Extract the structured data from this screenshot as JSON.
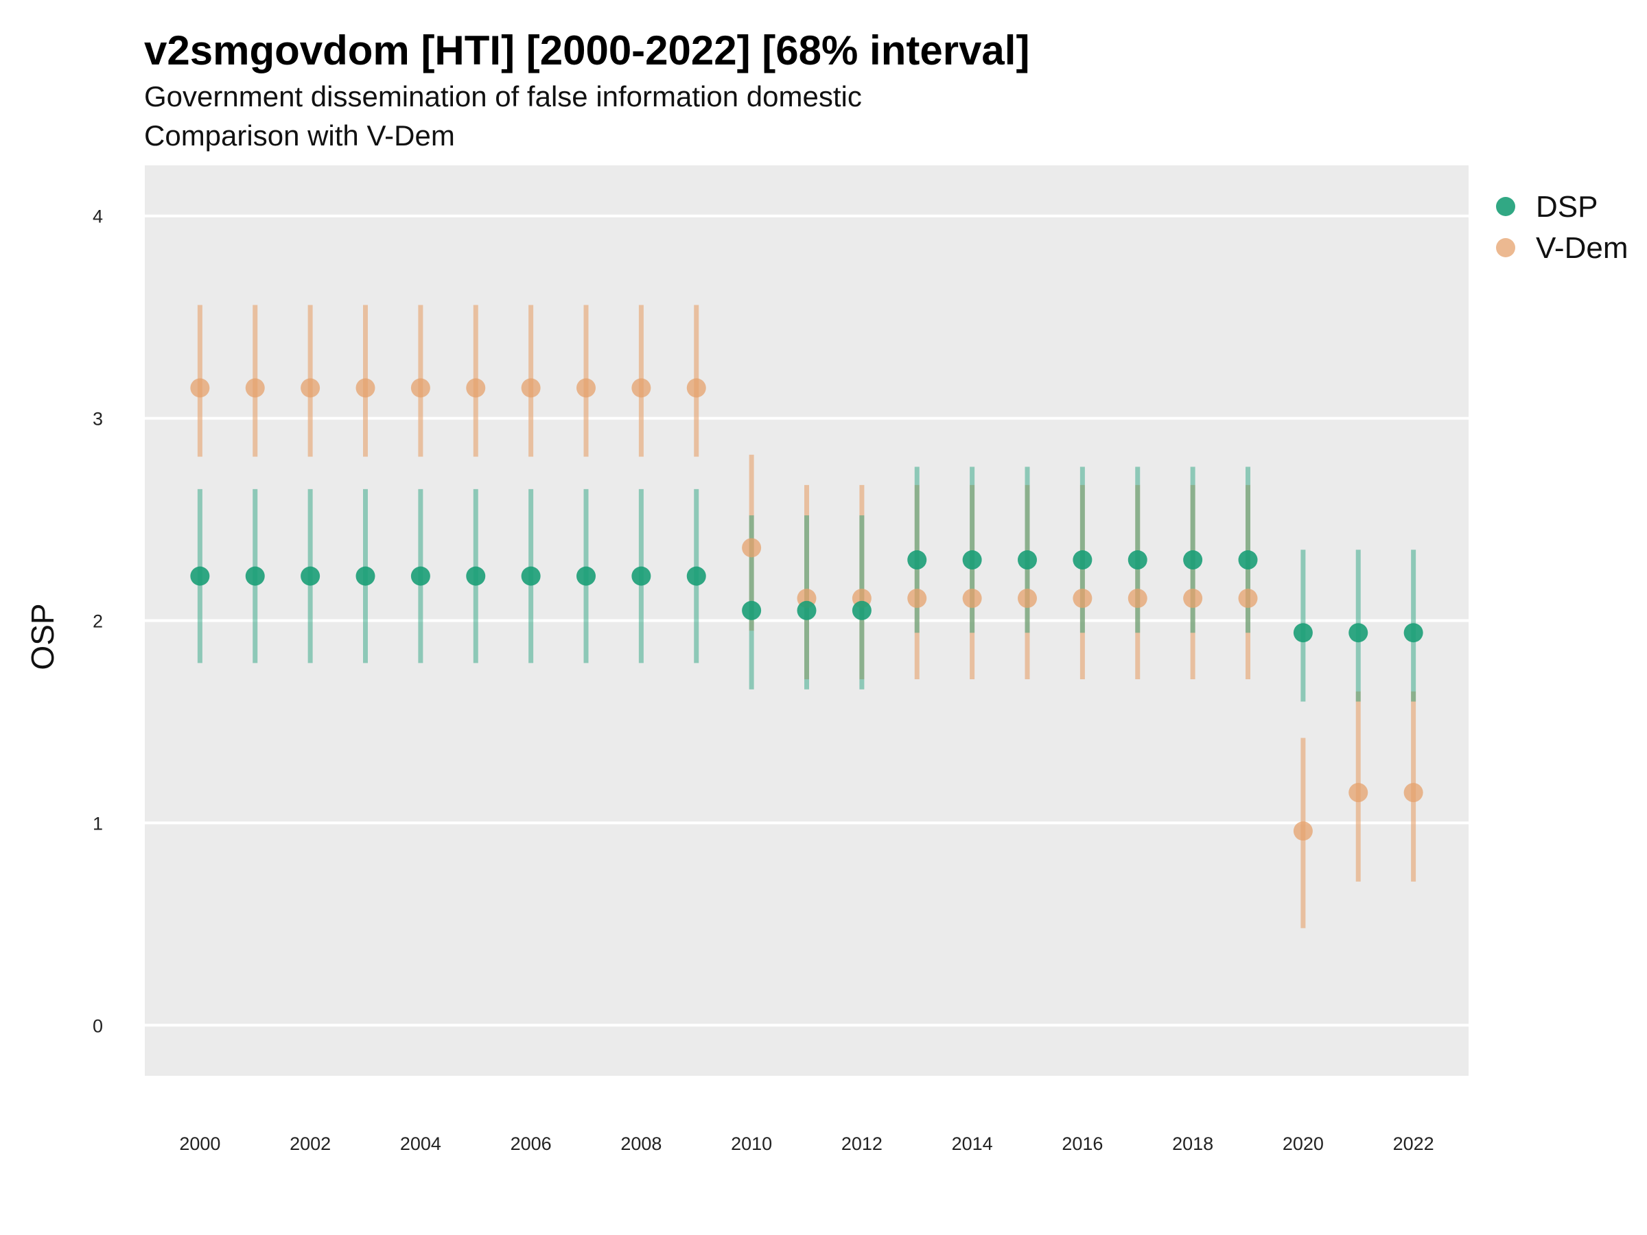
{
  "chart_data": {
    "type": "scatter",
    "title": "v2smgovdom [HTI] [2000-2022] [68% interval]",
    "subtitle": "Government dissemination of false information domestic",
    "subtitle2": "Comparison with V-Dem",
    "xlabel": "",
    "ylabel": "OSP",
    "xlim": [
      1999.0,
      2023.0
    ],
    "ylim": [
      -0.25,
      4.25
    ],
    "x_ticks": [
      2000,
      2002,
      2004,
      2006,
      2008,
      2010,
      2012,
      2014,
      2016,
      2018,
      2020,
      2022
    ],
    "y_ticks": [
      0,
      1,
      2,
      3,
      4
    ],
    "grid": true,
    "legend_position": "right",
    "colors": {
      "DSP": "#1b9e77",
      "V-Dem": "#e6a26c",
      "panel": "#ebebeb",
      "grid": "#ffffff"
    },
    "series": [
      {
        "name": "DSP",
        "x": [
          2000,
          2001,
          2002,
          2003,
          2004,
          2005,
          2006,
          2007,
          2008,
          2009,
          2010,
          2011,
          2012,
          2013,
          2014,
          2015,
          2016,
          2017,
          2018,
          2019,
          2020,
          2021,
          2022
        ],
        "values": [
          2.22,
          2.22,
          2.22,
          2.22,
          2.22,
          2.22,
          2.22,
          2.22,
          2.22,
          2.22,
          2.05,
          2.05,
          2.05,
          2.3,
          2.3,
          2.3,
          2.3,
          2.3,
          2.3,
          2.3,
          1.94,
          1.94,
          1.94
        ],
        "lower": [
          1.79,
          1.79,
          1.79,
          1.79,
          1.79,
          1.79,
          1.79,
          1.79,
          1.79,
          1.79,
          1.66,
          1.66,
          1.66,
          1.94,
          1.94,
          1.94,
          1.94,
          1.94,
          1.94,
          1.94,
          1.6,
          1.6,
          1.6
        ],
        "upper": [
          2.65,
          2.65,
          2.65,
          2.65,
          2.65,
          2.65,
          2.65,
          2.65,
          2.65,
          2.65,
          2.52,
          2.52,
          2.52,
          2.76,
          2.76,
          2.76,
          2.76,
          2.76,
          2.76,
          2.76,
          2.35,
          2.35,
          2.35
        ]
      },
      {
        "name": "V-Dem",
        "x": [
          2000,
          2001,
          2002,
          2003,
          2004,
          2005,
          2006,
          2007,
          2008,
          2009,
          2010,
          2011,
          2012,
          2013,
          2014,
          2015,
          2016,
          2017,
          2018,
          2019,
          2020,
          2021,
          2022
        ],
        "values": [
          3.15,
          3.15,
          3.15,
          3.15,
          3.15,
          3.15,
          3.15,
          3.15,
          3.15,
          3.15,
          2.36,
          2.11,
          2.11,
          2.11,
          2.11,
          2.11,
          2.11,
          2.11,
          2.11,
          2.11,
          0.96,
          1.15,
          1.15
        ],
        "lower": [
          2.81,
          2.81,
          2.81,
          2.81,
          2.81,
          2.81,
          2.81,
          2.81,
          2.81,
          2.81,
          1.95,
          1.71,
          1.71,
          1.71,
          1.71,
          1.71,
          1.71,
          1.71,
          1.71,
          1.71,
          0.48,
          0.71,
          0.71
        ],
        "upper": [
          3.56,
          3.56,
          3.56,
          3.56,
          3.56,
          3.56,
          3.56,
          3.56,
          3.56,
          3.56,
          2.82,
          2.67,
          2.67,
          2.67,
          2.67,
          2.67,
          2.67,
          2.67,
          2.67,
          2.67,
          1.42,
          1.65,
          1.65
        ]
      }
    ]
  }
}
